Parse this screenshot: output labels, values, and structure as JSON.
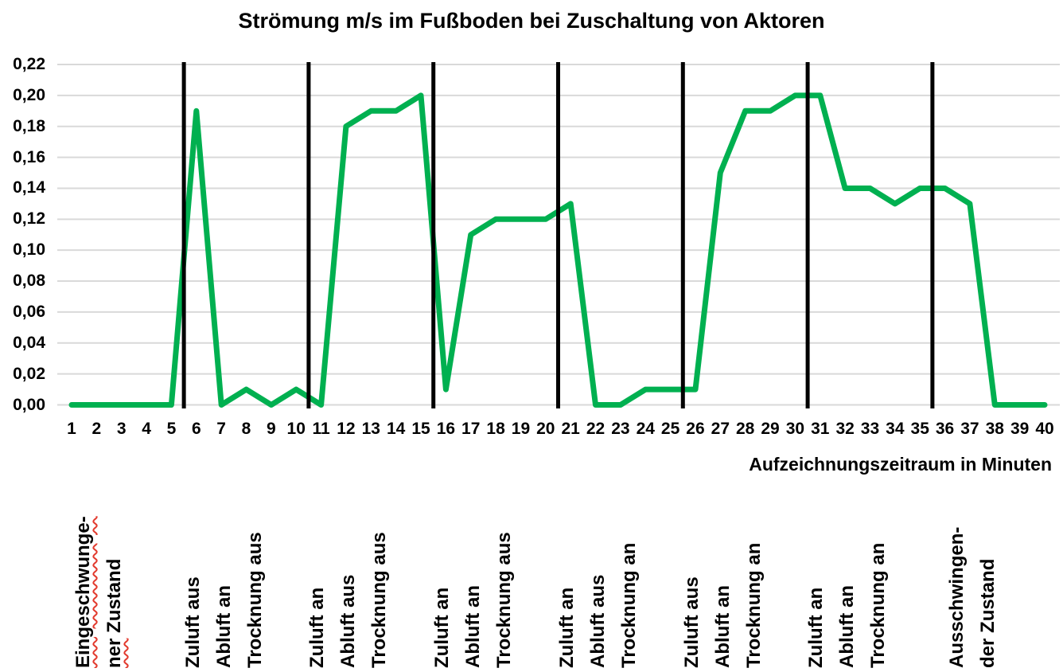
{
  "title": "Strömung m/s im Fußboden bei Zuschaltung von Aktoren",
  "x_axis_title": "Aufzeichnungszeitraum in Minuten",
  "chart_data": {
    "type": "line",
    "title": "Strömung m/s im Fußboden bei Zuschaltung von Aktoren",
    "xlabel": "Aufzeichnungszeitraum in Minuten",
    "ylabel": "",
    "x": [
      1,
      2,
      3,
      4,
      5,
      6,
      7,
      8,
      9,
      10,
      11,
      12,
      13,
      14,
      15,
      16,
      17,
      18,
      19,
      20,
      21,
      22,
      23,
      24,
      25,
      26,
      27,
      28,
      29,
      30,
      31,
      32,
      33,
      34,
      35,
      36,
      37,
      38,
      39,
      40
    ],
    "values": [
      0.0,
      0.0,
      0.0,
      0.0,
      0.0,
      0.19,
      0.0,
      0.01,
      0.0,
      0.01,
      0.0,
      0.18,
      0.19,
      0.19,
      0.2,
      0.01,
      0.11,
      0.12,
      0.12,
      0.12,
      0.13,
      0.0,
      0.0,
      0.01,
      0.01,
      0.01,
      0.15,
      0.19,
      0.19,
      0.2,
      0.2,
      0.14,
      0.14,
      0.13,
      0.14,
      0.14,
      0.13,
      0.0,
      0.0,
      0.0
    ],
    "ylim": [
      0,
      0.22
    ],
    "y_tick_step": 0.02,
    "y_tick_labels": [
      "0,22",
      "0,20",
      "0,18",
      "0,16",
      "0,14",
      "0,12",
      "0,10",
      "0,08",
      "0,06",
      "0,04",
      "0,02",
      "0,00"
    ],
    "grid": "horizontal",
    "legend": "none",
    "line_color": "#00B050",
    "grid_color": "#D9D9D9",
    "boundary_color": "#000000",
    "phase_boundaries_x": [
      5.5,
      10.5,
      15.5,
      20.5,
      25.5,
      30.5,
      35.5
    ],
    "phases": [
      {
        "start_minute": 1,
        "end_minute": 5,
        "lines": [
          "Eingeschwunge-",
          "ner Zustand"
        ]
      },
      {
        "start_minute": 6,
        "end_minute": 10,
        "lines": [
          "Zuluft aus",
          "Abluft an",
          "Trocknung aus"
        ]
      },
      {
        "start_minute": 11,
        "end_minute": 15,
        "lines": [
          "Zuluft an",
          "Abluft aus",
          "Trocknung aus"
        ]
      },
      {
        "start_minute": 16,
        "end_minute": 20,
        "lines": [
          "Zuluft an",
          "Abluft an",
          "Trocknung aus"
        ]
      },
      {
        "start_minute": 21,
        "end_minute": 25,
        "lines": [
          "Zuluft an",
          "Abluft aus",
          "Trocknung an"
        ]
      },
      {
        "start_minute": 26,
        "end_minute": 30,
        "lines": [
          "Zuluft aus",
          "Abluft an",
          "Trocknung an"
        ]
      },
      {
        "start_minute": 31,
        "end_minute": 35,
        "lines": [
          "Zuluft an",
          "Abluft an",
          "Trocknung an"
        ]
      },
      {
        "start_minute": 36,
        "end_minute": 40,
        "lines": [
          "Ausschwingen-",
          "der Zustand"
        ]
      }
    ],
    "spellcheck_words": [
      "Eingeschwunge-",
      "ner"
    ]
  }
}
